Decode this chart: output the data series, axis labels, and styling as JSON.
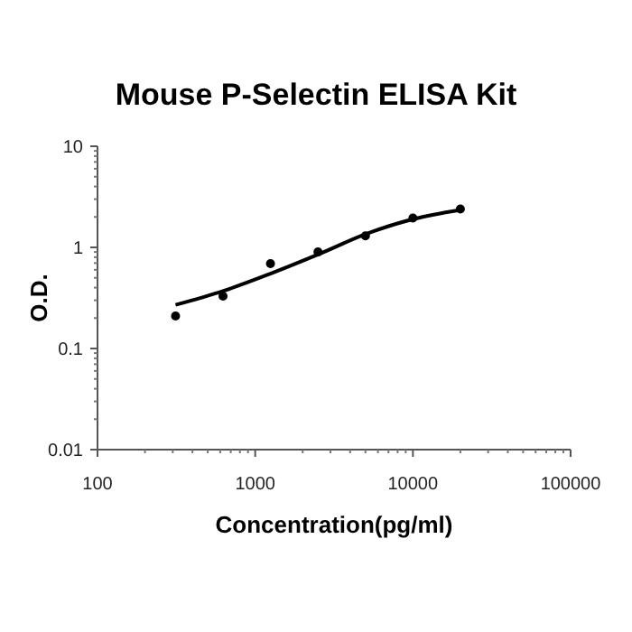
{
  "chart_data": {
    "type": "scatter",
    "title": "Mouse P-Selectin ELISA Kit",
    "xlabel": "Concentration(pg/ml)",
    "ylabel": "O.D.",
    "log": "xy",
    "xlim": [
      100,
      100000
    ],
    "xticks": [
      100,
      1000,
      10000,
      100000
    ],
    "ylim": [
      0.01,
      10
    ],
    "yticks": [
      0.01,
      0.1,
      1,
      10
    ],
    "grid": false,
    "marker": "circle",
    "series": [
      {
        "color": "#000000",
        "x": [
          312.5,
          625,
          1250,
          2500,
          5000,
          10000,
          20000
        ],
        "values": [
          0.21,
          0.33,
          0.69,
          0.9,
          1.3,
          1.95,
          2.4
        ]
      },
      {
        "type": "line",
        "color": "#000000",
        "marker": "none",
        "line_style": "solid",
        "x": [
          312.5,
          625,
          1250,
          2500,
          5000,
          10000,
          20000
        ],
        "values": [
          0.27,
          0.37,
          0.55,
          0.85,
          1.35,
          1.9,
          2.35
        ]
      }
    ]
  }
}
